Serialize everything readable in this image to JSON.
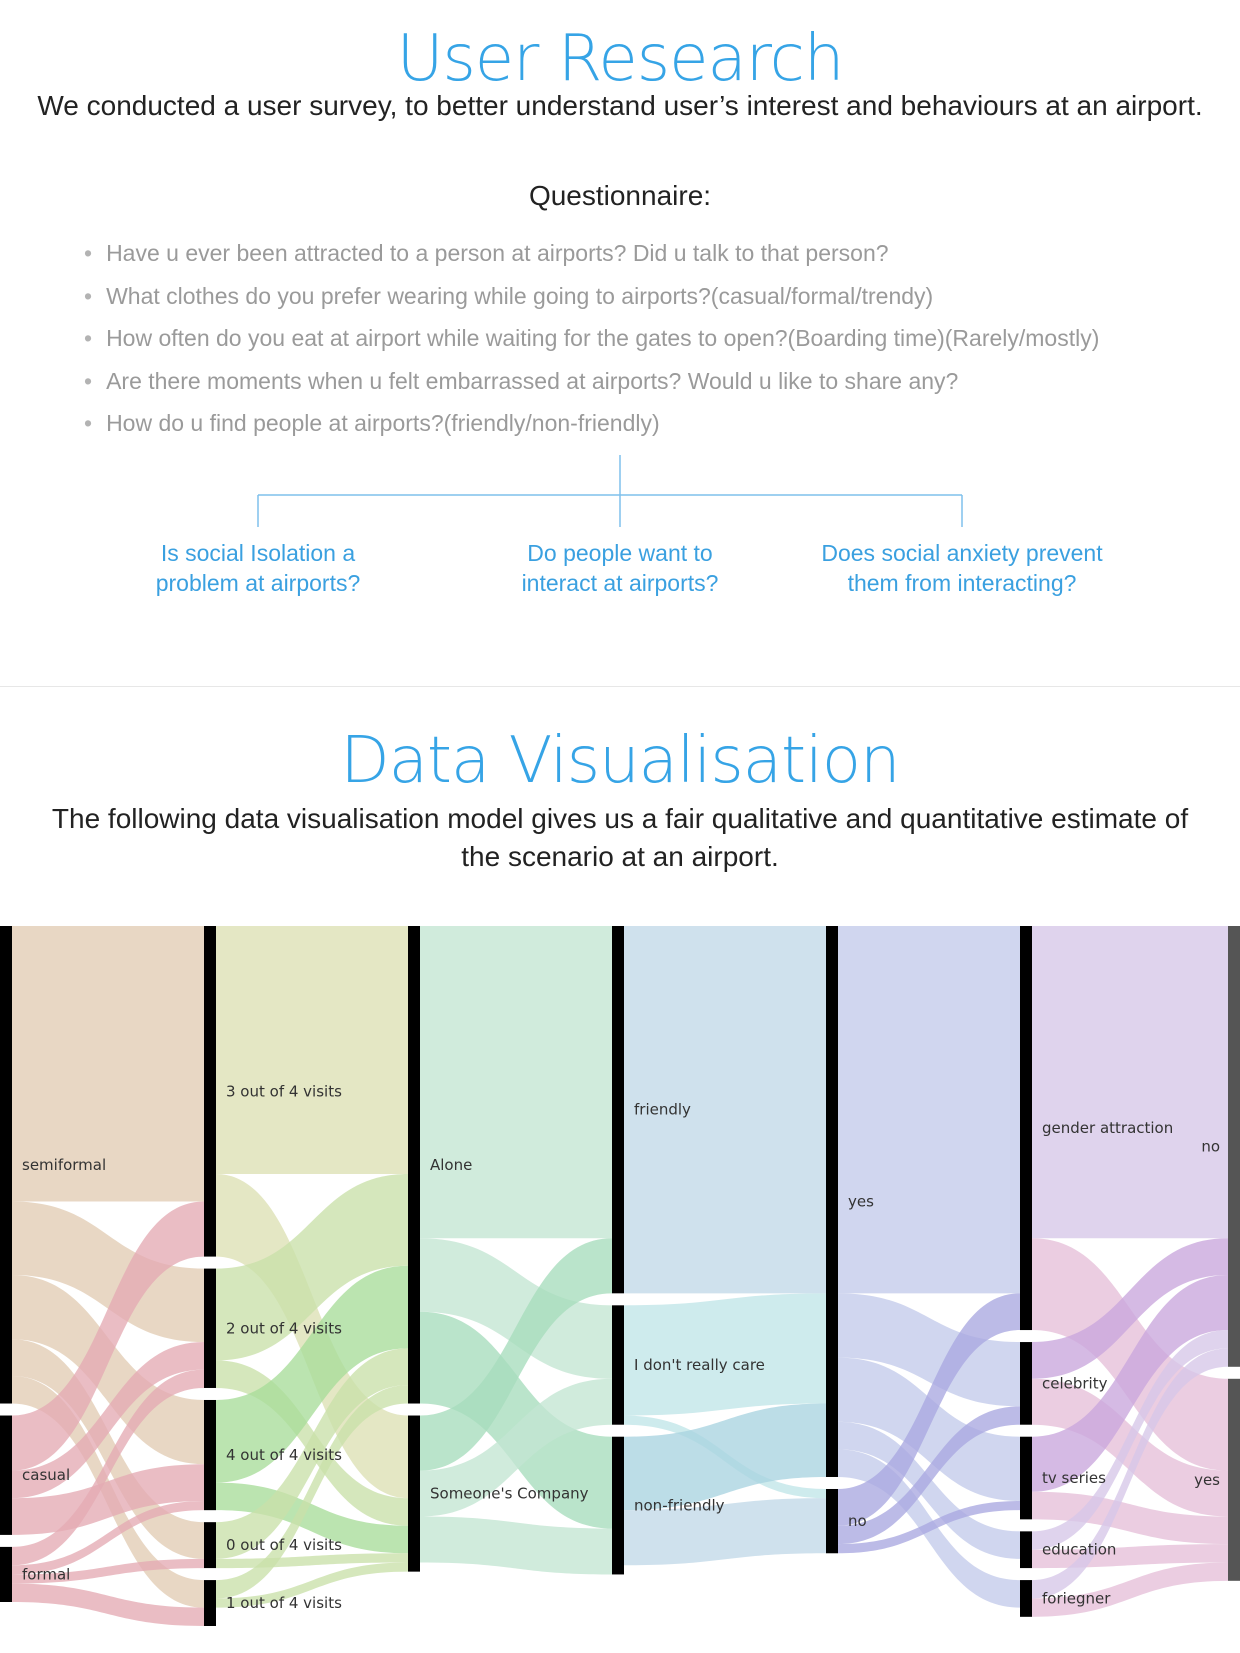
{
  "research": {
    "title": "User Research",
    "intro": "We conducted a user survey, to better understand user’s interest and behaviours at an airport.",
    "questionnaire_heading": "Questionnaire:",
    "questions": [
      "Have u ever been attracted to a person at airports? Did u talk to that person?",
      "What clothes do you prefer wearing while going to airports?(casual/formal/trendy)",
      "How often do you eat at airport while waiting for the gates to open?(Boarding time)(Rarely/mostly)",
      "Are there moments when u felt embarrassed at airports? Would u like to share any?",
      "How do u find people at airports?(friendly/non-friendly)"
    ],
    "branches": [
      {
        "line1": "Is social Isolation a",
        "line2": "problem at airports?"
      },
      {
        "line1": "Do people want to",
        "line2": "interact at airports?"
      },
      {
        "line1": "Does social anxiety prevent",
        "line2": "them from interacting?"
      }
    ],
    "accent_color": "#36a4e6"
  },
  "visualisation": {
    "title": "Data Visualisation",
    "intro_line1": "The following data visualisation model gives us a fair qualitative and quantitative estimate of",
    "intro_line2": "the scenario at an airport.",
    "chart_data": {
      "type": "sankey",
      "columns": [
        {
          "nodes": [
            {
              "id": "semiformal",
              "label": "semiformal",
              "value": 52,
              "color": "#e2ccb3"
            },
            {
              "id": "casual",
              "label": "casual",
              "value": 13,
              "color": "#e4aab4"
            },
            {
              "id": "formal",
              "label": "formal",
              "value": 6,
              "color": "#e4aab4"
            }
          ]
        },
        {
          "nodes": [
            {
              "id": "f3",
              "label": "3 out of 4 visits",
              "value": 36,
              "color": "#dde0b4"
            },
            {
              "id": "f2",
              "label": "2 out of 4 visits",
              "value": 13,
              "color": "#d7e4b8"
            },
            {
              "id": "f4",
              "label": "4 out of 4 visits",
              "value": 12,
              "color": "#d7e4b8"
            },
            {
              "id": "f0",
              "label": "0 out of 4 visits",
              "value": 5,
              "color": "#d7e4b8"
            },
            {
              "id": "f1",
              "label": "1 out of 4 visits",
              "value": 5,
              "color": "#d7e4b8"
            }
          ]
        },
        {
          "nodes": [
            {
              "id": "alone",
              "label": "Alone",
              "value": 52,
              "color": "#c3e5d2"
            },
            {
              "id": "company",
              "label": "Someone's Company",
              "value": 17,
              "color": "#c3e5d2"
            }
          ]
        },
        {
          "nodes": [
            {
              "id": "friendly",
              "label": "friendly",
              "value": 40,
              "color": "#c2d9e8"
            },
            {
              "id": "dontcare",
              "label": "I don't really care",
              "value": 13,
              "color": "#c0e5e8"
            },
            {
              "id": "nonfriendly",
              "label": "non-friendly",
              "value": 15,
              "color": "#c2d9e8"
            }
          ]
        },
        {
          "nodes": [
            {
              "id": "yes",
              "label": "yes",
              "value": 60,
              "color": "#c3cbea"
            },
            {
              "id": "no",
              "label": "no",
              "value": 7,
              "color": "#c3cbea"
            }
          ]
        },
        {
          "nodes": [
            {
              "id": "gender",
              "label": "gender attraction",
              "value": 44,
              "color": "#c2c3ea"
            },
            {
              "id": "celebrity",
              "label": "celebrity",
              "value": 9,
              "color": "#dac7e8"
            },
            {
              "id": "tv",
              "label": "tv series",
              "value": 9,
              "color": "#dac7e8"
            },
            {
              "id": "education",
              "label": "education",
              "value": 4,
              "color": "#dac7e8"
            },
            {
              "id": "foriegner",
              "label": "foriegner",
              "value": 4,
              "color": "#dac7e8"
            }
          ]
        },
        {
          "nodes": [
            {
              "id": "no2",
              "label": "no",
              "value": 48,
              "color": "#d6c6e8"
            },
            {
              "id": "yes2",
              "label": "yes",
              "value": 22,
              "color": "#e6bfd9"
            }
          ]
        }
      ],
      "links": [
        {
          "source": "semiformal",
          "target": "f3",
          "value": 30,
          "color": "#e2ccb3"
        },
        {
          "source": "semiformal",
          "target": "f2",
          "value": 8,
          "color": "#e2ccb3"
        },
        {
          "source": "semiformal",
          "target": "f4",
          "value": 7,
          "color": "#e2ccb3"
        },
        {
          "source": "semiformal",
          "target": "f0",
          "value": 4,
          "color": "#e2ccb3"
        },
        {
          "source": "semiformal",
          "target": "f1",
          "value": 3,
          "color": "#e2ccb3"
        },
        {
          "source": "casual",
          "target": "f3",
          "value": 6,
          "color": "#e4aab4"
        },
        {
          "source": "casual",
          "target": "f2",
          "value": 3,
          "color": "#e4aab4"
        },
        {
          "source": "casual",
          "target": "f4",
          "value": 4,
          "color": "#e4aab4"
        },
        {
          "source": "formal",
          "target": "f2",
          "value": 2,
          "color": "#e4aab4"
        },
        {
          "source": "formal",
          "target": "f4",
          "value": 1,
          "color": "#e4aab4"
        },
        {
          "source": "formal",
          "target": "f0",
          "value": 1,
          "color": "#e4aab4"
        },
        {
          "source": "formal",
          "target": "f1",
          "value": 2,
          "color": "#e4aab4"
        },
        {
          "source": "f3",
          "target": "alone",
          "value": 27,
          "color": "#dde0b4"
        },
        {
          "source": "f3",
          "target": "company",
          "value": 9,
          "color": "#dde0b4"
        },
        {
          "source": "f2",
          "target": "alone",
          "value": 10,
          "color": "#c9e0a9"
        },
        {
          "source": "f2",
          "target": "company",
          "value": 3,
          "color": "#c9e0a9"
        },
        {
          "source": "f4",
          "target": "alone",
          "value": 9,
          "color": "#a8dc9a"
        },
        {
          "source": "f4",
          "target": "company",
          "value": 3,
          "color": "#a8dc9a"
        },
        {
          "source": "f0",
          "target": "alone",
          "value": 4,
          "color": "#c9e0a9"
        },
        {
          "source": "f0",
          "target": "company",
          "value": 1,
          "color": "#c9e0a9"
        },
        {
          "source": "f1",
          "target": "alone",
          "value": 2,
          "color": "#c9e0a9"
        },
        {
          "source": "f1",
          "target": "company",
          "value": 1,
          "color": "#c9e0a9"
        },
        {
          "source": "alone",
          "target": "friendly",
          "value": 34,
          "color": "#c3e5d2"
        },
        {
          "source": "alone",
          "target": "dontcare",
          "value": 8,
          "color": "#c3e5d2"
        },
        {
          "source": "alone",
          "target": "nonfriendly",
          "value": 10,
          "color": "#a6dcbc"
        },
        {
          "source": "company",
          "target": "friendly",
          "value": 6,
          "color": "#a6dcbc"
        },
        {
          "source": "company",
          "target": "dontcare",
          "value": 5,
          "color": "#c3e5d2"
        },
        {
          "source": "company",
          "target": "nonfriendly",
          "value": 5,
          "color": "#c3e5d2"
        },
        {
          "source": "friendly",
          "target": "yes",
          "value": 40,
          "color": "#c2d9e8"
        },
        {
          "source": "dontcare",
          "target": "yes",
          "value": 12,
          "color": "#c0e5e8"
        },
        {
          "source": "dontcare",
          "target": "no",
          "value": 1,
          "color": "#c0e5e8"
        },
        {
          "source": "nonfriendly",
          "target": "yes",
          "value": 8,
          "color": "#a9d3e0"
        },
        {
          "source": "nonfriendly",
          "target": "no",
          "value": 6,
          "color": "#c2d9e8"
        },
        {
          "source": "yes",
          "target": "gender",
          "value": 40,
          "color": "#c3cbea"
        },
        {
          "source": "yes",
          "target": "celebrity",
          "value": 7,
          "color": "#c3cbea"
        },
        {
          "source": "yes",
          "target": "tv",
          "value": 7,
          "color": "#c3cbea"
        },
        {
          "source": "yes",
          "target": "education",
          "value": 3,
          "color": "#c3cbea"
        },
        {
          "source": "yes",
          "target": "foriegner",
          "value": 3,
          "color": "#c3cbea"
        },
        {
          "source": "no",
          "target": "gender",
          "value": 4,
          "color": "#a9a8e0"
        },
        {
          "source": "no",
          "target": "celebrity",
          "value": 2,
          "color": "#a9a8e0"
        },
        {
          "source": "no",
          "target": "tv",
          "value": 1,
          "color": "#a9a8e0"
        },
        {
          "source": "gender",
          "target": "no2",
          "value": 34,
          "color": "#d6c6e8"
        },
        {
          "source": "gender",
          "target": "yes2",
          "value": 10,
          "color": "#e6bfd9"
        },
        {
          "source": "celebrity",
          "target": "no2",
          "value": 4,
          "color": "#c9a6dc"
        },
        {
          "source": "celebrity",
          "target": "yes2",
          "value": 5,
          "color": "#e6bfd9"
        },
        {
          "source": "tv",
          "target": "no2",
          "value": 6,
          "color": "#c9a6dc"
        },
        {
          "source": "tv",
          "target": "yes2",
          "value": 3,
          "color": "#e6bfd9"
        },
        {
          "source": "education",
          "target": "no2",
          "value": 2,
          "color": "#d6c6e8"
        },
        {
          "source": "education",
          "target": "yes2",
          "value": 2,
          "color": "#e6bfd9"
        },
        {
          "source": "foriegner",
          "target": "no2",
          "value": 2,
          "color": "#d6c6e8"
        },
        {
          "source": "foriegner",
          "target": "yes2",
          "value": 2,
          "color": "#e6bfd9"
        }
      ]
    }
  }
}
